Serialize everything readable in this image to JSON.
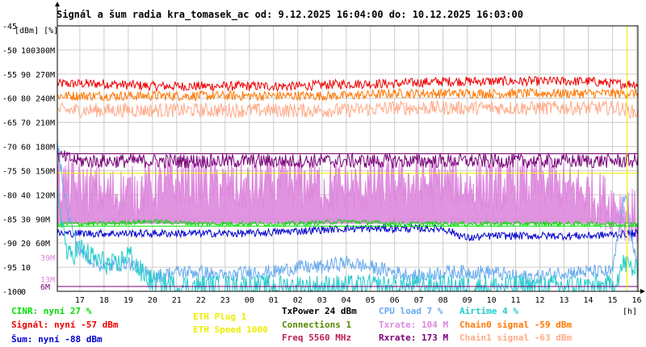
{
  "title": "Signál a šum radia kra_tomasek_ac od: 9.12.2025 16:04:00 do: 10.12.2025 16:03:00",
  "colors": {
    "cinr": "#00dd00",
    "signal": "#ee0000",
    "noise": "#0000cc",
    "eth_plug": "#eeee00",
    "eth_speed": "#eeee00",
    "txpower": "#000000",
    "connections": "#558800",
    "freq": "#bb2255",
    "cpu": "#66aaee",
    "txrate": "#dd88dd",
    "rxrate": "#770077",
    "airtime": "#22cccc",
    "chain0": "#ff7700",
    "chain1": "#ffaa88"
  },
  "legend": {
    "cinr": "CINR: nyní 27 %",
    "signal": "Signál: nyní -57 dBm",
    "noise": "Šum: nyní -88 dBm",
    "eth_plug": "ETH Plug 1",
    "eth_speed": "ETH Speed 1000",
    "txpower": "TxPower 24 dBm",
    "connections": "Connections 1",
    "freq": "Freq 5560 MHz",
    "cpu": "CPU load 7 %",
    "txrate": "Txrate: 104 M",
    "rxrate": "Rxrate: 173 M",
    "airtime": "Airtime 4 %",
    "chain0": "Chain0 signal -59 dBm",
    "chain1": "Chain1 signal -63 dBm"
  },
  "chart_data": {
    "type": "line",
    "title": "Signál a šum radia kra_tomasek_ac od: 9.12.2025 16:04:00 do: 10.12.2025 16:03:00",
    "y_header": "[dBm] [%]",
    "x_unit": "[h]",
    "ylim": [
      -100,
      -45
    ],
    "xlim": [
      16.07,
      40.05
    ],
    "y_ticks": [
      {
        "v": -45,
        "dbm": "-45",
        "pct": "",
        "rate": ""
      },
      {
        "v": -50,
        "dbm": "-50",
        "pct": "100",
        "rate": "300M"
      },
      {
        "v": -55,
        "dbm": "-55",
        "pct": "90",
        "rate": "270M"
      },
      {
        "v": -60,
        "dbm": "-60",
        "pct": "80",
        "rate": "240M"
      },
      {
        "v": -65,
        "dbm": "-65",
        "pct": "70",
        "rate": "210M"
      },
      {
        "v": -70,
        "dbm": "-70",
        "pct": "60",
        "rate": "180M"
      },
      {
        "v": -75,
        "dbm": "-75",
        "pct": "50",
        "rate": "150M"
      },
      {
        "v": -80,
        "dbm": "-80",
        "pct": "40",
        "rate": "120M"
      },
      {
        "v": -85,
        "dbm": "-85",
        "pct": "30",
        "rate": "90M"
      },
      {
        "v": -90,
        "dbm": "-90",
        "pct": "20",
        "rate": "60M"
      },
      {
        "v": -95,
        "dbm": "-95",
        "pct": "10",
        "rate": ""
      },
      {
        "v": -100,
        "dbm": "-100",
        "pct": "0",
        "rate": ""
      }
    ],
    "extra_labels": [
      {
        "v": -93,
        "text": "39M",
        "color": "#dd88dd"
      },
      {
        "v": -97.5,
        "text": "13M",
        "color": "#dd88dd"
      },
      {
        "v": -99,
        "text": "6M",
        "color": "#770077"
      }
    ],
    "x_ticks": [
      {
        "x": 17,
        "label": "17"
      },
      {
        "x": 18,
        "label": "18"
      },
      {
        "x": 19,
        "label": "19"
      },
      {
        "x": 20,
        "label": "20"
      },
      {
        "x": 21,
        "label": "21"
      },
      {
        "x": 22,
        "label": "22"
      },
      {
        "x": 23,
        "label": "23"
      },
      {
        "x": 24,
        "label": "00"
      },
      {
        "x": 25,
        "label": "01"
      },
      {
        "x": 26,
        "label": "02"
      },
      {
        "x": 27,
        "label": "03"
      },
      {
        "x": 28,
        "label": "04"
      },
      {
        "x": 29,
        "label": "05"
      },
      {
        "x": 30,
        "label": "06"
      },
      {
        "x": 31,
        "label": "07"
      },
      {
        "x": 32,
        "label": "08"
      },
      {
        "x": 33,
        "label": "09"
      },
      {
        "x": 34,
        "label": "10"
      },
      {
        "x": 35,
        "label": "11"
      },
      {
        "x": 36,
        "label": "12"
      },
      {
        "x": 37,
        "label": "13"
      },
      {
        "x": 38,
        "label": "14"
      },
      {
        "x": 39,
        "label": "15"
      },
      {
        "x": 40,
        "label": "16"
      }
    ],
    "hlines": [
      {
        "name": "txpower-line",
        "y": -71.5,
        "color": "#770077"
      },
      {
        "name": "eth-speed-line",
        "y": -75.5,
        "color": "#eeee00"
      },
      {
        "name": "cinr-line",
        "y": -86.5,
        "color": "#00dd00"
      },
      {
        "name": "rxrate-low-line",
        "y": -99,
        "color": "#770077"
      }
    ],
    "vmarker": {
      "x": 39.6,
      "color": "#eeee00"
    },
    "series": [
      {
        "name": "Signál",
        "color": "#ee0000",
        "x": [
          16.1,
          18,
          20,
          22,
          24,
          26,
          28,
          30,
          32,
          34,
          36,
          38,
          39.2,
          40
        ],
        "y": [
          -57,
          -57,
          -57.5,
          -57.5,
          -57.5,
          -57.5,
          -57,
          -57,
          -56.5,
          -56.5,
          -56.5,
          -56.5,
          -57,
          -57
        ],
        "jitter": 1.0,
        "fill_to": null
      },
      {
        "name": "Chain0 signal",
        "color": "#ff7700",
        "x": [
          16.1,
          18,
          20,
          22,
          24,
          26,
          28,
          30,
          32,
          34,
          36,
          38,
          39.2,
          40
        ],
        "y": [
          -59.5,
          -59.5,
          -59.5,
          -59.5,
          -59.5,
          -59.5,
          -59.5,
          -59,
          -59,
          -59,
          -59,
          -59,
          -59,
          -59
        ],
        "jitter": 1.0,
        "fill_to": null
      },
      {
        "name": "Chain1 signal",
        "color": "#ffaa88",
        "x": [
          16.1,
          18,
          20,
          22,
          24,
          26,
          28,
          30,
          32,
          34,
          36,
          38,
          39.2,
          40
        ],
        "y": [
          -62.5,
          -62.5,
          -62.5,
          -62.5,
          -62.5,
          -62.5,
          -62.5,
          -62,
          -62,
          -62,
          -62,
          -62,
          -62,
          -63
        ],
        "jitter": 1.5,
        "fill_to": null
      },
      {
        "name": "Txrate",
        "color": "#dd88dd",
        "x": [
          16.1,
          17,
          18,
          19,
          20,
          21,
          22,
          24,
          26,
          28,
          30,
          32,
          34,
          36,
          38,
          39,
          40
        ],
        "y": [
          -78,
          -79,
          -80,
          -80,
          -79,
          -78,
          -78,
          -79,
          -78,
          -79,
          -78,
          -78,
          -79,
          -78,
          -80,
          -82,
          -85
        ],
        "jitter": 6.0,
        "fill_to": -86
      },
      {
        "name": "Rxrate",
        "color": "#770077",
        "x": [
          16.1,
          17,
          18,
          20,
          22,
          24,
          26,
          28,
          30,
          32,
          34,
          36,
          38,
          40
        ],
        "y": [
          -72,
          -73,
          -73,
          -73,
          -73,
          -73,
          -73,
          -73,
          -73,
          -73,
          -73,
          -73,
          -73,
          -73
        ],
        "jitter": 1.5,
        "fill_to": null
      },
      {
        "name": "CINR",
        "color": "#00dd00",
        "x": [
          16.1,
          18,
          20,
          22,
          24,
          26,
          28,
          30,
          32,
          34,
          36,
          38,
          40
        ],
        "y": [
          -86,
          -86,
          -85.5,
          -86,
          -86,
          -86,
          -85.5,
          -86,
          -86,
          -86,
          -86,
          -86,
          -86
        ],
        "jitter": 0.5,
        "fill_to": null
      },
      {
        "name": "Šum",
        "color": "#0000cc",
        "x": [
          16.1,
          18,
          20,
          22,
          24,
          26,
          28,
          30,
          32,
          33,
          34,
          36,
          38,
          40
        ],
        "y": [
          -88,
          -88,
          -88,
          -88,
          -88,
          -87.5,
          -87,
          -87,
          -87,
          -89,
          -88.5,
          -88.5,
          -88.5,
          -88
        ],
        "jitter": 0.8,
        "fill_to": null
      },
      {
        "name": "CPU load",
        "color": "#66aaee",
        "x": [
          16.1,
          16.5,
          17,
          18,
          19,
          20,
          21,
          22,
          23,
          24,
          25,
          26,
          27,
          28,
          29,
          30,
          31,
          32,
          33,
          34,
          35,
          36,
          37,
          38,
          39,
          39.5,
          40
        ],
        "y": [
          -70,
          -84,
          -92,
          -95,
          -94,
          -97,
          -96,
          -96,
          -97,
          -96,
          -96,
          -95,
          -95,
          -94,
          -95,
          -96,
          -97,
          -96,
          -96,
          -96,
          -97,
          -97,
          -96,
          -96,
          -96,
          -80,
          -95
        ],
        "jitter": 1.5,
        "fill_to": null
      },
      {
        "name": "Airtime",
        "color": "#22cccc",
        "x": [
          16.1,
          16.5,
          17,
          17.5,
          18,
          18.5,
          19,
          19.5,
          20,
          21,
          22,
          24,
          26,
          28,
          30,
          32,
          34,
          36,
          38,
          39,
          39.5,
          40
        ],
        "y": [
          -80,
          -93,
          -91,
          -93,
          -94,
          -95,
          -92,
          -96,
          -98,
          -99,
          -99,
          -99,
          -99,
          -99,
          -99,
          -99,
          -99,
          -99,
          -99,
          -99,
          -94,
          -96
        ],
        "jitter": 2.5,
        "fill_to": null
      }
    ]
  }
}
